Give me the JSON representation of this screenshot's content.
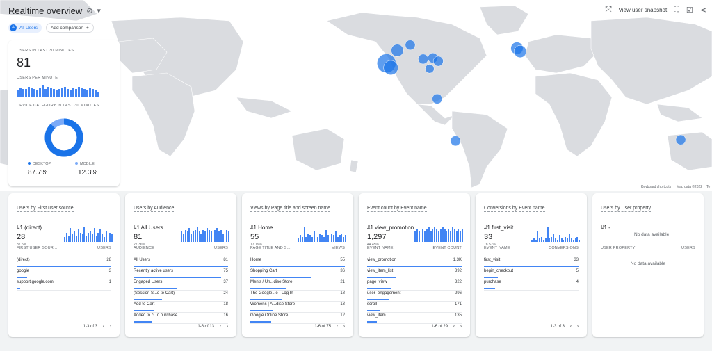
{
  "header": {
    "title": "Realtime overview",
    "view_snapshot": "View user snapshot"
  },
  "chips": {
    "user_avatar": "A",
    "all_users": "All Users",
    "add_comparison": "Add comparison"
  },
  "stats": {
    "users_label": "USERS IN LAST 30 MINUTES",
    "users_value": "81",
    "upm_label": "USERS PER MINUTE",
    "upm_values": [
      5,
      7,
      6,
      6,
      8,
      7,
      6,
      5,
      7,
      9,
      6,
      8,
      7,
      6,
      5,
      6,
      7,
      8,
      6,
      5,
      7,
      6,
      8,
      7,
      6,
      5,
      7,
      6,
      5,
      4
    ],
    "device_label": "DEVICE CATEGORY IN LAST 30 MINUTES",
    "desktop_label": "DESKTOP",
    "desktop_value": "87.7%",
    "desktop_fraction": 0.877,
    "mobile_label": "MOBILE",
    "mobile_value": "12.3%"
  },
  "map": {
    "keyboard": "Keyboard shortcuts",
    "mapdata": "Map data ©2022",
    "terms": "Te"
  },
  "colors": {
    "primary": "#1a73e8",
    "bar": "#4285f4",
    "mobile": "#7baaf7"
  },
  "cards": [
    {
      "title": "Users by First user source",
      "top": "#1 (direct)",
      "top_value": "28",
      "top_pct": "87.5%",
      "spark": [
        3,
        6,
        4,
        9,
        5,
        7,
        4,
        8,
        6,
        5,
        10,
        4,
        6,
        7,
        5,
        9,
        4,
        6,
        8,
        5,
        3,
        7,
        4,
        6,
        5
      ],
      "col1": "FIRST USER SOUR...",
      "col2": "USERS",
      "rows": [
        {
          "label": "(direct)",
          "value": "28",
          "frac": 1.0
        },
        {
          "label": "google",
          "value": "3",
          "frac": 0.11
        },
        {
          "label": "support.google.com",
          "value": "1",
          "frac": 0.04
        }
      ],
      "pager": "1-3 of 3"
    },
    {
      "title": "Users by Audience",
      "top": "#1 All Users",
      "top_value": "81",
      "top_pct": "27.36%",
      "spark": [
        6,
        5,
        7,
        6,
        8,
        5,
        6,
        7,
        9,
        6,
        5,
        7,
        6,
        8,
        7,
        6,
        5,
        7,
        8,
        6,
        7,
        5,
        6,
        7,
        6
      ],
      "col1": "AUDIENCE",
      "col2": "USERS",
      "rows": [
        {
          "label": "All Users",
          "value": "81",
          "frac": 1.0
        },
        {
          "label": "Recently active users",
          "value": "75",
          "frac": 0.93
        },
        {
          "label": "Engaged Users",
          "value": "37",
          "frac": 0.46
        },
        {
          "label": "(Session S...d to Cart)",
          "value": "24",
          "frac": 0.3
        },
        {
          "label": "Add to Cart",
          "value": "18",
          "frac": 0.22
        },
        {
          "label": "Added to c...o purchase",
          "value": "16",
          "frac": 0.2
        }
      ],
      "pager": "1-6 of 13"
    },
    {
      "title": "Views by Page title and screen name",
      "top": "#1 Home",
      "top_value": "55",
      "top_pct": "17.19%",
      "spark": [
        2,
        4,
        3,
        9,
        3,
        5,
        4,
        3,
        6,
        4,
        3,
        5,
        4,
        3,
        7,
        4,
        3,
        5,
        4,
        6,
        3,
        4,
        5,
        3,
        4
      ],
      "col1": "PAGE TITLE AND S...",
      "col2": "VIEWS",
      "rows": [
        {
          "label": "Home",
          "value": "55",
          "frac": 1.0
        },
        {
          "label": "Shopping Cart",
          "value": "36",
          "frac": 0.65
        },
        {
          "label": "Men's / Un...dise Store",
          "value": "21",
          "frac": 0.38
        },
        {
          "label": "The Google...e - Log In",
          "value": "18",
          "frac": 0.33
        },
        {
          "label": "Womens | A...dise Store",
          "value": "13",
          "frac": 0.24
        },
        {
          "label": "Google Online Store",
          "value": "12",
          "frac": 0.22
        }
      ],
      "pager": "1-6 of 75"
    },
    {
      "title": "Event count by Event name",
      "top": "#1 view_promotion",
      "top_value": "1,297",
      "top_pct": "44.45%",
      "spark": [
        6,
        7,
        6,
        8,
        7,
        6,
        7,
        8,
        6,
        7,
        8,
        7,
        6,
        7,
        8,
        7,
        6,
        7,
        6,
        8,
        7,
        6,
        7,
        6,
        7
      ],
      "col1": "EVENT NAME",
      "col2": "EVENT COUNT",
      "rows": [
        {
          "label": "view_promotion",
          "value": "1.3K",
          "frac": 1.0
        },
        {
          "label": "view_item_list",
          "value": "392",
          "frac": 0.3
        },
        {
          "label": "page_view",
          "value": "322",
          "frac": 0.25
        },
        {
          "label": "user_engagement",
          "value": "296",
          "frac": 0.23
        },
        {
          "label": "scroll",
          "value": "171",
          "frac": 0.13
        },
        {
          "label": "view_item",
          "value": "135",
          "frac": 0.1
        }
      ],
      "pager": "1-6 of 29"
    },
    {
      "title": "Conversions by Event name",
      "top": "#1 first_visit",
      "top_value": "33",
      "top_pct": "78.57%",
      "spark": [
        1,
        2,
        1,
        6,
        2,
        3,
        1,
        2,
        9,
        2,
        3,
        5,
        2,
        1,
        4,
        2,
        1,
        3,
        2,
        5,
        2,
        1,
        2,
        3,
        1
      ],
      "col1": "EVENT NAME",
      "col2": "CONVERSIONS",
      "rows": [
        {
          "label": "first_visit",
          "value": "33",
          "frac": 1.0
        },
        {
          "label": "begin_checkout",
          "value": "5",
          "frac": 0.15
        },
        {
          "label": "purchase",
          "value": "4",
          "frac": 0.12
        }
      ],
      "pager": "1-3 of 3"
    },
    {
      "title": "Users by User property",
      "top": "#1 -",
      "nodata_top": "No data available",
      "col1": "USER PROPERTY",
      "col2": "USERS",
      "nodata": "No data available"
    }
  ],
  "map_points": [
    {
      "lon": -122,
      "lat": 38,
      "w": 6
    },
    {
      "lon": -118,
      "lat": 34,
      "w": 4
    },
    {
      "lon": -112,
      "lat": 50,
      "w": 3
    },
    {
      "lon": -100,
      "lat": 55,
      "w": 2
    },
    {
      "lon": -88,
      "lat": 42,
      "w": 2
    },
    {
      "lon": -79,
      "lat": 43,
      "w": 2
    },
    {
      "lon": -74,
      "lat": 40,
      "w": 2
    },
    {
      "lon": -82,
      "lat": 33,
      "w": 1.5
    },
    {
      "lon": -75,
      "lat": 5,
      "w": 2
    },
    {
      "lon": -58,
      "lat": -34,
      "w": 2
    },
    {
      "lon": 151,
      "lat": -33,
      "w": 2
    },
    {
      "lon": -1,
      "lat": 52,
      "w": 3
    },
    {
      "lon": 2,
      "lat": 49,
      "w": 3
    }
  ]
}
